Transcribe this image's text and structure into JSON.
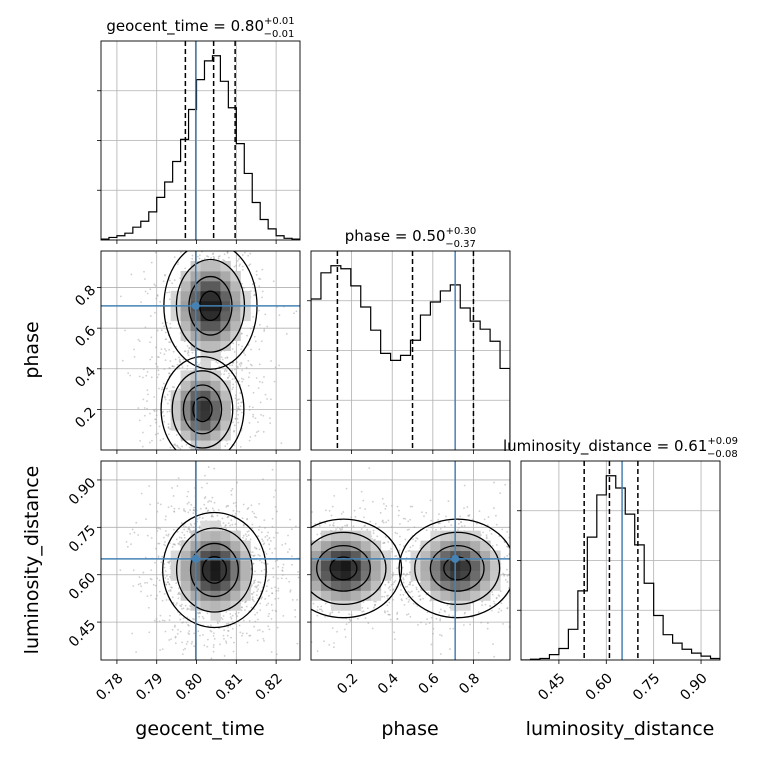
{
  "chart_data": {
    "type": "corner",
    "parameters": [
      "geocent_time",
      "phase",
      "luminosity_distance"
    ],
    "axis_labels": {
      "geocent_time": "geocent_time",
      "phase": "phase",
      "luminosity_distance": "luminosity_distance"
    },
    "ranges": {
      "geocent_time": [
        0.776,
        0.826
      ],
      "phase": [
        0.0,
        0.98
      ],
      "luminosity_distance": [
        0.33,
        0.96
      ]
    },
    "ticks": {
      "geocent_time": {
        "values": [
          0.78,
          0.79,
          0.8,
          0.81,
          0.82
        ],
        "labels": [
          "0.78",
          "0.79",
          "0.80",
          "0.81",
          "0.82"
        ]
      },
      "phase_x": {
        "values": [
          0.2,
          0.4,
          0.6,
          0.8
        ],
        "labels": [
          "0.2",
          "0.4",
          "0.6",
          "0.8"
        ]
      },
      "phase_y": {
        "values": [
          0.2,
          0.4,
          0.6,
          0.8
        ],
        "labels": [
          "0.2",
          "0.4",
          "0.6",
          "0.8"
        ]
      },
      "luminosity_distance": {
        "values": [
          0.45,
          0.6,
          0.75,
          0.9
        ],
        "labels": [
          "0.45",
          "0.60",
          "0.75",
          "0.90"
        ]
      }
    },
    "truths": {
      "geocent_time": 0.7998,
      "phase": 0.71,
      "luminosity_distance": 0.65
    },
    "titles": [
      {
        "param": "geocent_time",
        "prefix": "geocent_time = 0.80",
        "plus": "+0.01",
        "minus": "−0.01"
      },
      {
        "param": "phase",
        "prefix": "phase = 0.50",
        "plus": "+0.30",
        "minus": "−0.37"
      },
      {
        "param": "luminosity_distance",
        "prefix": "luminosity_distance = 0.61",
        "plus": "+0.09",
        "minus": "−0.08"
      }
    ],
    "quantiles": {
      "geocent_time": [
        0.7972,
        0.8043,
        0.8097
      ],
      "phase": [
        0.13,
        0.5,
        0.8
      ],
      "luminosity_distance": [
        0.53,
        0.61,
        0.7
      ]
    },
    "histograms": {
      "geocent_time": {
        "edges": [
          0.776,
          0.778,
          0.78,
          0.782,
          0.784,
          0.786,
          0.788,
          0.79,
          0.792,
          0.794,
          0.796,
          0.798,
          0.8,
          0.802,
          0.804,
          0.806,
          0.808,
          0.81,
          0.812,
          0.814,
          0.816,
          0.818,
          0.82,
          0.822,
          0.824,
          0.826
        ],
        "counts": [
          1,
          3,
          5,
          8,
          15,
          22,
          33,
          50,
          68,
          92,
          118,
          153,
          188,
          210,
          216,
          186,
          155,
          113,
          78,
          44,
          24,
          13,
          5,
          2,
          1
        ]
      },
      "phase": {
        "edges": [
          0.0,
          0.049,
          0.098,
          0.147,
          0.196,
          0.245,
          0.294,
          0.343,
          0.392,
          0.441,
          0.49,
          0.539,
          0.588,
          0.637,
          0.686,
          0.735,
          0.784,
          0.833,
          0.882,
          0.931,
          0.98
        ],
        "counts": [
          150,
          176,
          183,
          180,
          163,
          142,
          119,
          96,
          89,
          94,
          109,
          134,
          147,
          158,
          164,
          141,
          128,
          120,
          108,
          81
        ]
      },
      "luminosity_distance": {
        "edges": [
          0.33,
          0.36,
          0.39,
          0.42,
          0.45,
          0.48,
          0.51,
          0.54,
          0.57,
          0.6,
          0.63,
          0.66,
          0.69,
          0.72,
          0.75,
          0.78,
          0.81,
          0.84,
          0.87,
          0.9,
          0.93,
          0.96
        ],
        "counts": [
          0,
          1,
          2,
          7,
          15,
          40,
          90,
          160,
          215,
          240,
          224,
          190,
          150,
          100,
          58,
          33,
          22,
          14,
          9,
          5,
          2
        ]
      }
    },
    "density_modes": {
      "phase_vs_geocent_time": [
        {
          "x": 0.8035,
          "y": 0.71,
          "sx": 0.0045,
          "sy": 0.12,
          "weight": 1.0
        },
        {
          "x": 0.8015,
          "y": 0.2,
          "sx": 0.004,
          "sy": 0.1,
          "weight": 0.9
        }
      ],
      "luminosity_distance_vs_geocent_time": [
        {
          "x": 0.8045,
          "y": 0.615,
          "sx": 0.005,
          "sy": 0.07,
          "weight": 1.0
        }
      ],
      "luminosity_distance_vs_phase": [
        {
          "x": 0.16,
          "y": 0.62,
          "sx": 0.11,
          "sy": 0.06,
          "weight": 1.0
        },
        {
          "x": 0.72,
          "y": 0.62,
          "sx": 0.11,
          "sy": 0.06,
          "weight": 0.9
        }
      ]
    },
    "grid": true,
    "colors": {
      "truth": "#4682b4",
      "step": "#000000",
      "grid": "#b0b0b0",
      "scatter": "#a0a0a0"
    }
  }
}
